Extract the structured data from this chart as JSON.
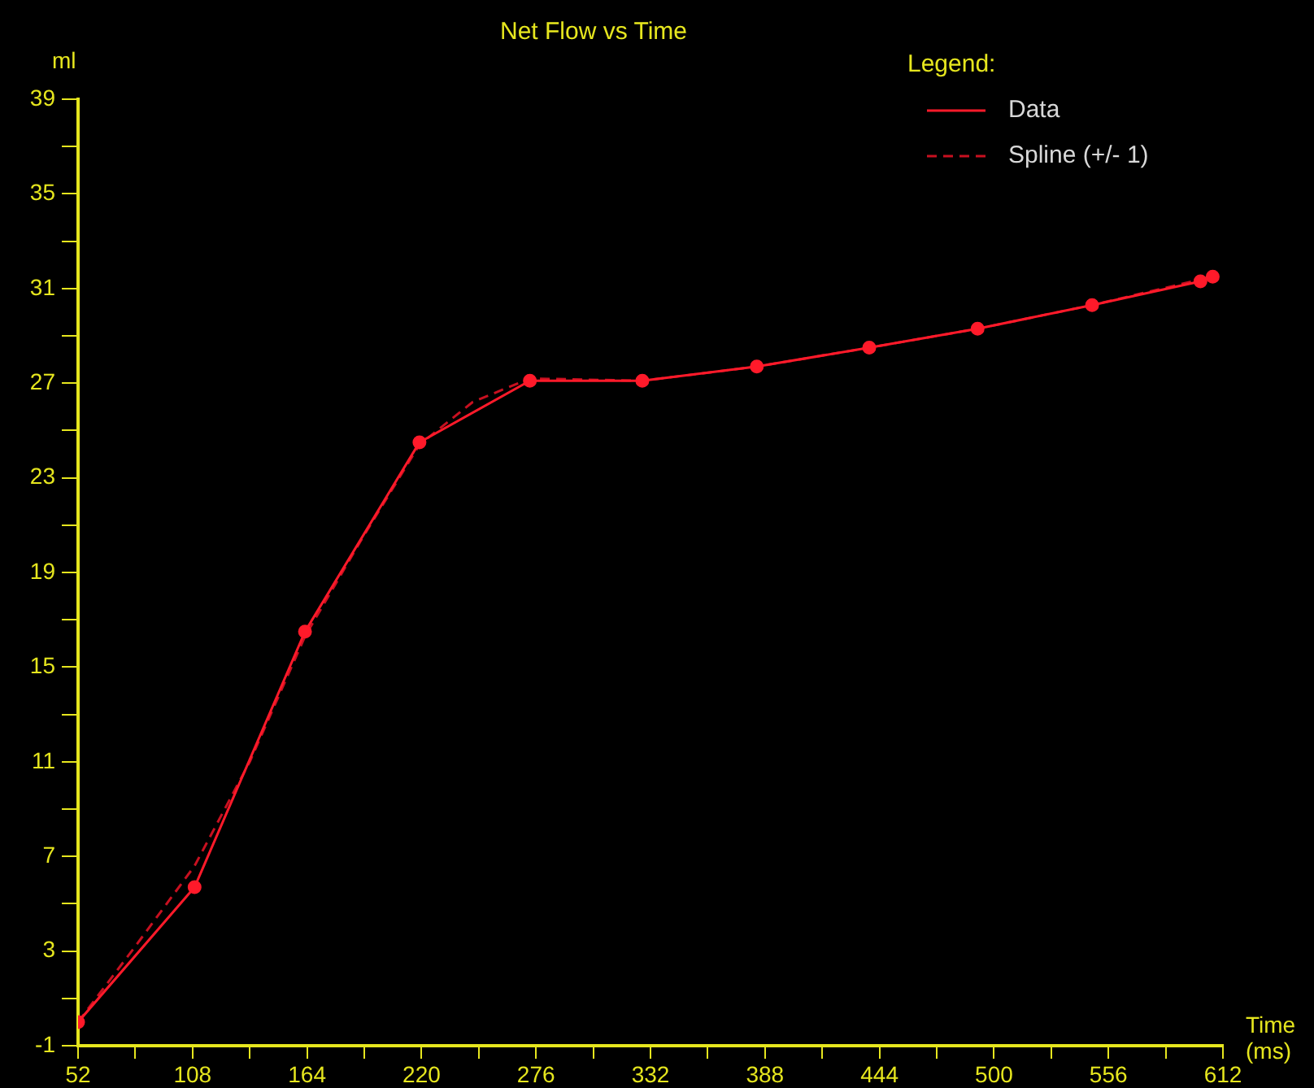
{
  "chart_data": {
    "type": "line",
    "title": "Net Flow vs Time",
    "xlabel": "Time (ms)",
    "ylabel": "ml",
    "legend_title": "Legend:",
    "legend": "top right",
    "grid": false,
    "xlim": [
      52,
      612
    ],
    "xticks": [
      52,
      {
        "value": 80,
        "label": null
      },
      108,
      {
        "value": 136,
        "label": null
      },
      164,
      {
        "value": 192,
        "label": null
      },
      220,
      {
        "value": 248,
        "label": null
      },
      276,
      {
        "value": 304,
        "label": null
      },
      332,
      {
        "value": 360,
        "label": null
      },
      388,
      {
        "value": 416,
        "label": null
      },
      444,
      {
        "value": 472,
        "label": null
      },
      500,
      {
        "value": 528,
        "label": null
      },
      556,
      {
        "value": 584,
        "label": null
      },
      612
    ],
    "ylim": [
      -1,
      39
    ],
    "yticks": [
      -1,
      {
        "value": 1,
        "label": null
      },
      3,
      {
        "value": 5,
        "label": null
      },
      7,
      {
        "value": 9,
        "label": null
      },
      11,
      {
        "value": 13,
        "label": null
      },
      15,
      {
        "value": 17,
        "label": null
      },
      19,
      {
        "value": 21,
        "label": null
      },
      23,
      {
        "value": 25,
        "label": null
      },
      27,
      {
        "value": 29,
        "label": null
      },
      31,
      {
        "value": 33,
        "label": null
      },
      35,
      {
        "value": 37,
        "label": null
      },
      39
    ],
    "series": [
      {
        "name": "Data",
        "color": "#ff1a2a",
        "marker": "circle",
        "line_style": "solid",
        "x": [
          52,
          109,
          163,
          219,
          273,
          328,
          384,
          439,
          492,
          548,
          601,
          607
        ],
        "values": [
          0,
          5.7,
          16.5,
          24.5,
          27.1,
          27.1,
          27.7,
          28.5,
          29.3,
          30.3,
          31.3,
          31.5
        ]
      },
      {
        "name": "Spline (+/- 1)",
        "color": "#c81020",
        "marker": "none",
        "line_style": "dashed",
        "x": [
          52,
          80,
          109,
          136,
          163,
          190,
          219,
          245,
          273,
          328,
          384,
          439,
          492,
          548,
          607
        ],
        "values": [
          0,
          3.2,
          6.6,
          11,
          16.3,
          20.3,
          24.4,
          26.2,
          27.2,
          27.1,
          27.7,
          28.5,
          29.3,
          30.3,
          31.5
        ]
      }
    ]
  }
}
